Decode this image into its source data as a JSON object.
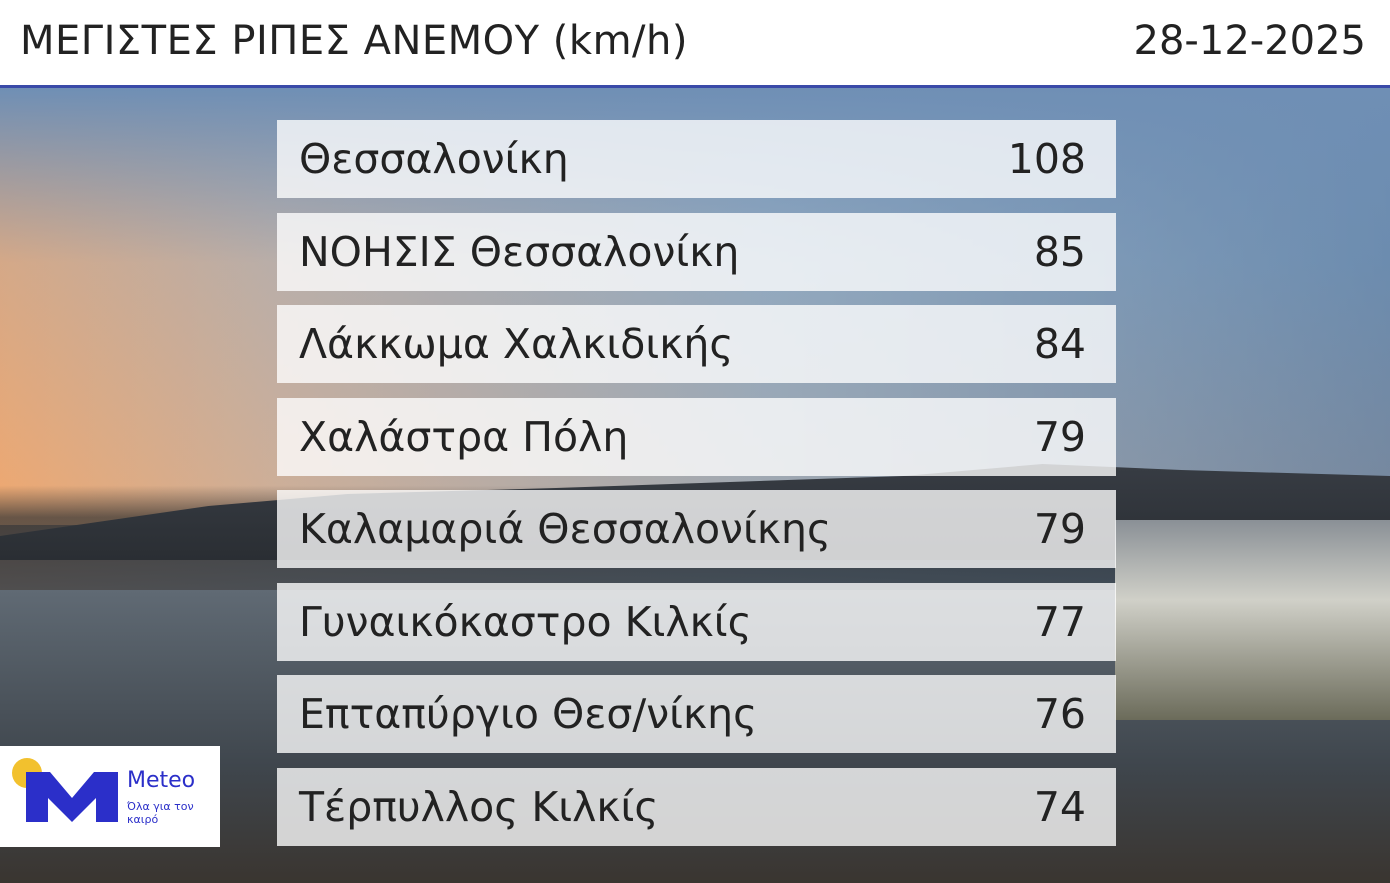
{
  "header": {
    "title": "ΜΕΓΙΣΤΕΣ ΡΙΠΕΣ ΑΝΕΜΟΥ (km/h)",
    "date": "28-12-2025"
  },
  "rows": [
    {
      "station": "Θεσσαλονίκη",
      "value": "108"
    },
    {
      "station": "ΝΟΗΣΙΣ Θεσσαλονίκη",
      "value": "85"
    },
    {
      "station": "Λάκκωμα Χαλκιδικής",
      "value": "84"
    },
    {
      "station": "Χαλάστρα Πόλη",
      "value": "79"
    },
    {
      "station": "Καλαμαριά Θεσσαλονίκης",
      "value": "79"
    },
    {
      "station": "Γυναικόκαστρο Κιλκίς",
      "value": "77"
    },
    {
      "station": "Επταπύργιο Θεσ/νίκης",
      "value": "76"
    },
    {
      "station": "Τέρπυλλος Κιλκίς",
      "value": "74"
    }
  ],
  "logo": {
    "name": "Meteo",
    "slogan": "Όλα για τον καιρό",
    "colors": {
      "brand": "#2b2fc9",
      "sun": "#f2c12e"
    }
  }
}
